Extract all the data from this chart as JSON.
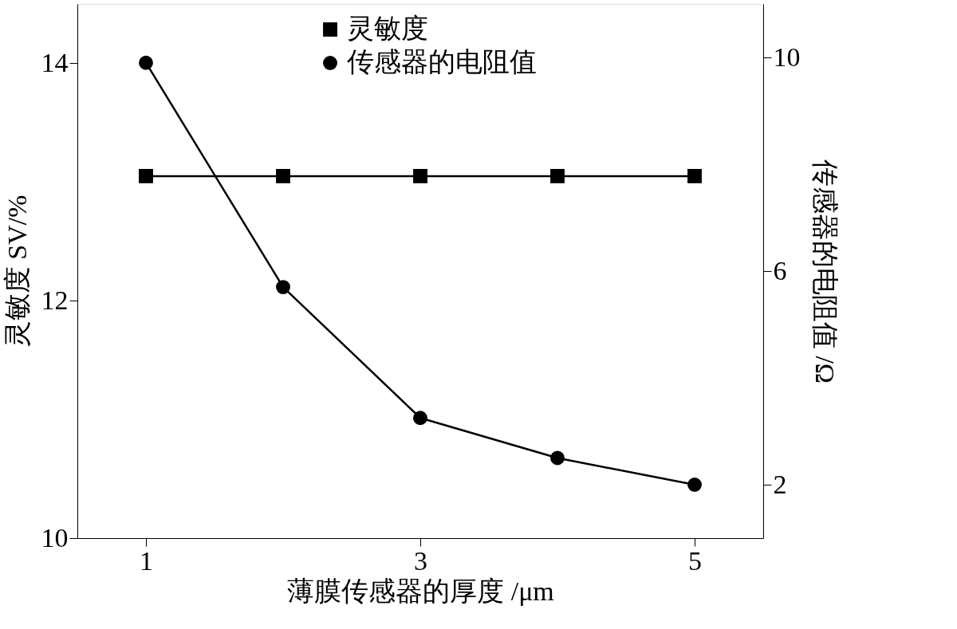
{
  "chart_data": {
    "type": "line",
    "xlabel": "薄膜传感器的厚度 /μm",
    "ylabel": "灵敏度 SV/%",
    "y2label": "传感器的电阻值 /Ω",
    "x": [
      1,
      2,
      3,
      4,
      5
    ],
    "series": [
      {
        "name": "灵敏度",
        "color": "#000000",
        "values": [
          13.05,
          13.05,
          13.05,
          13.05,
          13.05
        ],
        "marker": "square"
      },
      {
        "name": "传感器的电阻值",
        "color": "#000000",
        "values": [
          9.9,
          5.7,
          3.25,
          2.5,
          2.0
        ],
        "marker": "circle",
        "axis": "y2"
      }
    ],
    "xlim": [
      0.5,
      5.5
    ],
    "xticks": [
      1,
      3,
      5
    ],
    "ylim": [
      10,
      14.5
    ],
    "yticks": [
      10,
      12,
      14
    ],
    "y2lim": [
      1,
      11
    ],
    "y2ticks": [
      2,
      6,
      10
    ],
    "grid": false,
    "legend": "top",
    "line_style": "solid"
  }
}
